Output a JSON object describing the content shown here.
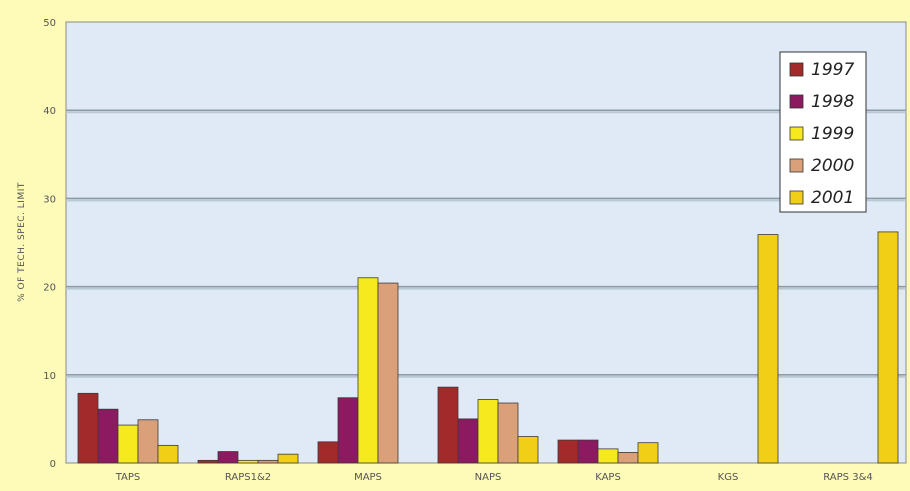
{
  "chart_data": {
    "type": "bar",
    "title": "",
    "xlabel": "",
    "ylabel": "% OF TECH. SPEC. LIMIT",
    "ylim": [
      0,
      50
    ],
    "yticks": [
      0,
      10,
      20,
      30,
      40,
      50
    ],
    "grid": true,
    "legend_position": "top-right",
    "categories": [
      "TAPS",
      "RAPS1&2",
      "MAPS",
      "NAPS",
      "KAPS",
      "KGS",
      "RAPS 3&4"
    ],
    "series": [
      {
        "name": "1997",
        "color": "#a32a2a",
        "values": [
          7.9,
          0.3,
          2.4,
          8.6,
          2.6,
          0,
          0
        ]
      },
      {
        "name": "1998",
        "color": "#8c1a60",
        "values": [
          6.1,
          1.3,
          7.4,
          5.0,
          2.6,
          0,
          0
        ]
      },
      {
        "name": "1999",
        "color": "#f6ea1e",
        "values": [
          4.3,
          0.3,
          21.0,
          7.2,
          1.6,
          0,
          0
        ]
      },
      {
        "name": "2000",
        "color": "#d9a07a",
        "values": [
          4.9,
          0.3,
          20.4,
          6.8,
          1.2,
          0,
          0
        ]
      },
      {
        "name": "2001",
        "color": "#f0cf16",
        "values": [
          2.0,
          1.0,
          0,
          3.0,
          2.3,
          25.9,
          26.2
        ]
      }
    ]
  }
}
